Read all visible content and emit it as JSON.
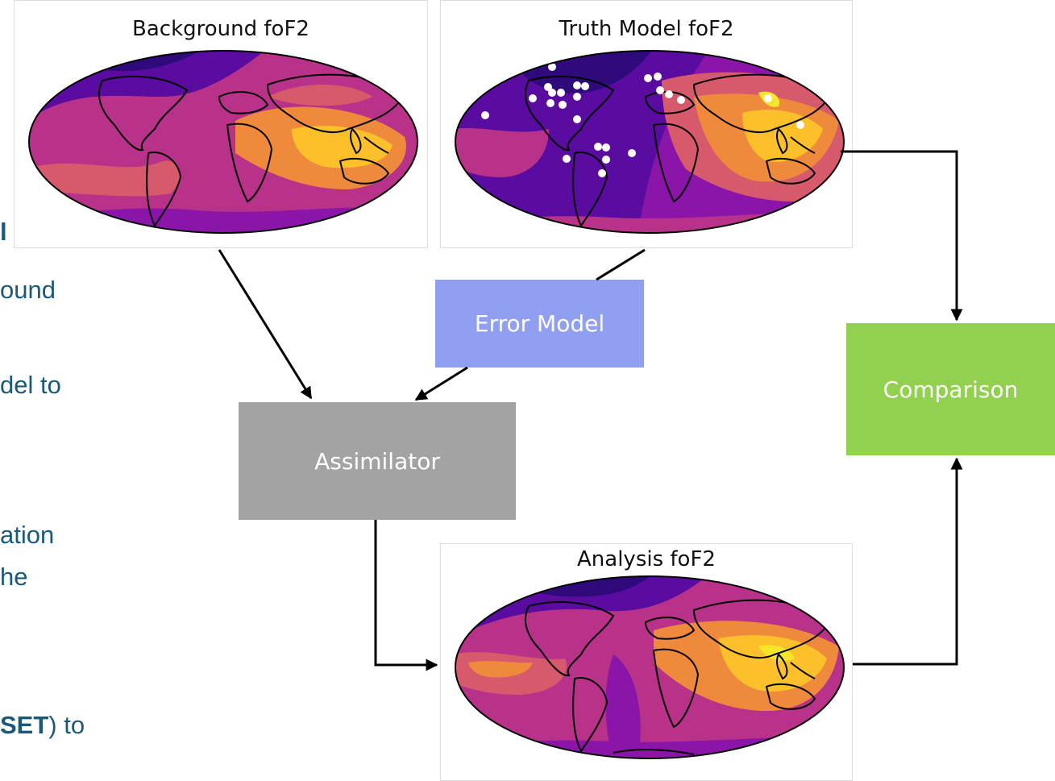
{
  "sidebar_text": [
    {
      "prefix": "",
      "bold": "l",
      "suffix": ""
    },
    {
      "prefix": "ound",
      "bold": "",
      "suffix": ""
    },
    {
      "prefix": "del to",
      "bold": "",
      "suffix": ""
    },
    {
      "prefix": "ation",
      "bold": "",
      "suffix": ""
    },
    {
      "prefix": "he",
      "bold": "",
      "suffix": ""
    },
    {
      "prefix": "",
      "bold": "SET",
      "suffix": ") to"
    }
  ],
  "maps": {
    "background": {
      "title": "Background foF2"
    },
    "truth": {
      "title": "Truth Model foF2"
    },
    "analysis": {
      "title": "Analysis foF2"
    }
  },
  "boxes": {
    "error_model": {
      "label": "Error Model",
      "color": "#919ff3"
    },
    "assimilator": {
      "label": "Assimilator",
      "color": "#a3a3a3"
    },
    "comparison": {
      "label": "Comparison",
      "color": "#92d050"
    }
  },
  "colormap": [
    "#2e0a7a",
    "#5a0ba0",
    "#8b15a8",
    "#b83289",
    "#d65a6b",
    "#ef8a3c",
    "#fbc02a",
    "#f5e62b"
  ]
}
